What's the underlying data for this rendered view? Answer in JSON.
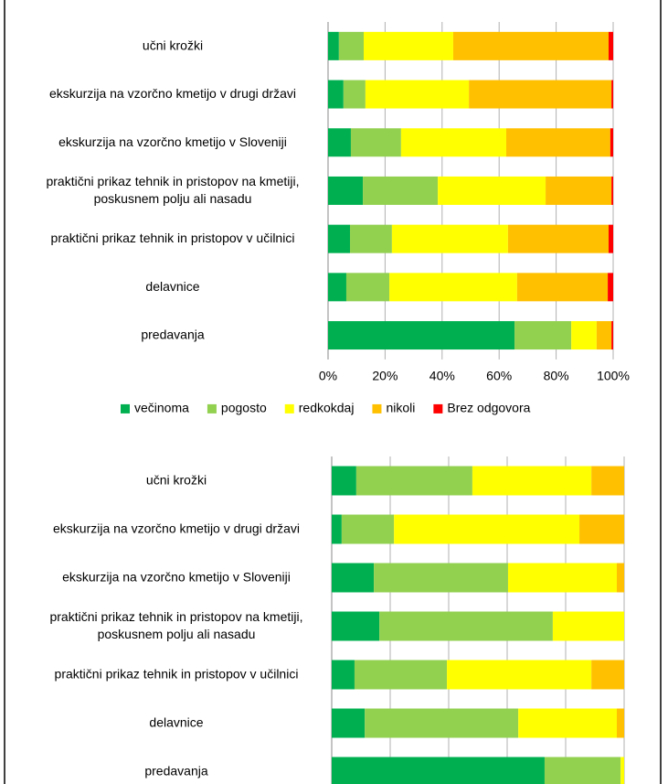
{
  "chart_data": [
    {
      "type": "stacked-bar-horizontal",
      "categories": [
        "učni krožki",
        "ekskurzija na vzorčno kmetijo v drugi državi",
        "ekskurzija na vzorčno kmetijo v Sloveniji",
        "praktični prikaz tehnik in pristopov na kmetiji, poskusnem polju ali nasadu",
        "praktični prikaz tehnik in pristopov v učilnici",
        "delavnice",
        "predavanja"
      ],
      "series": [
        {
          "name": "večinoma",
          "color": "#00b050",
          "values": [
            3.8,
            5.4,
            8,
            12.2,
            7.7,
            6.4,
            65.4
          ]
        },
        {
          "name": "pogosto",
          "color": "#92d050",
          "values": [
            8.7,
            7.7,
            17.6,
            26.3,
            14.7,
            15.1,
            19.9
          ]
        },
        {
          "name": "redkokdaj",
          "color": "#ffff00",
          "values": [
            31.4,
            36.3,
            36.9,
            37.8,
            40.7,
            44.8,
            8.9
          ]
        },
        {
          "name": "nikoli",
          "color": "#ffc000",
          "values": [
            54.5,
            50,
            36.5,
            23.1,
            35.3,
            31.8,
            5.2
          ]
        },
        {
          "name": "Brez odgovora",
          "color": "#ff0000",
          "values": [
            1.6,
            0.6,
            1,
            0.6,
            1.6,
            1.9,
            0.6
          ]
        }
      ],
      "xlim": [
        0,
        100
      ],
      "xticks": [
        {
          "value": 0,
          "label": "0%"
        },
        {
          "value": 20,
          "label": "20%"
        },
        {
          "value": 40,
          "label": "40%"
        },
        {
          "value": 60,
          "label": "60%"
        },
        {
          "value": 80,
          "label": "80%"
        },
        {
          "value": 100,
          "label": "100%"
        }
      ],
      "grid": true,
      "legend": "bottom"
    },
    {
      "type": "stacked-bar-horizontal",
      "categories": [
        "učni krožki",
        "ekskurzija na vzorčno kmetijo v drugi državi",
        "ekskurzija na vzorčno kmetijo v Sloveniji",
        "praktični prikaz tehnik in pristopov na kmetiji, poskusnem polju ali nasadu",
        "praktični prikaz tehnik in pristopov v učilnici",
        "delavnice",
        "predavanja"
      ],
      "series": [
        {
          "color": "#00b050",
          "values": [
            8.4,
            3.4,
            14.4,
            16.3,
            7.8,
            11.3,
            72.8
          ]
        },
        {
          "color": "#92d050",
          "values": [
            39.7,
            17.9,
            45.9,
            59.3,
            31.6,
            52.5,
            26
          ]
        },
        {
          "color": "#ffff00",
          "values": [
            40.7,
            63.4,
            37.2,
            24.4,
            49.4,
            33.7,
            1.2
          ]
        },
        {
          "color": "#ffc000",
          "values": [
            11.2,
            15.3,
            2.5,
            0,
            11.2,
            2.5,
            0
          ]
        }
      ],
      "xlim": [
        0,
        100
      ],
      "xticks": [
        0,
        20,
        40,
        60,
        80,
        100
      ],
      "grid": true
    }
  ]
}
